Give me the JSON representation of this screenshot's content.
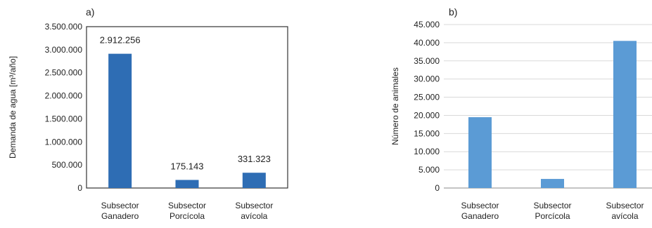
{
  "chart_data": [
    {
      "type": "bar",
      "panel_label": "a)",
      "title": "",
      "xlabel": "",
      "ylabel": "Demanda de agua [m³/año]",
      "categories": [
        [
          "Subsector",
          "Ganadero"
        ],
        [
          "Subsector",
          "Porcícola"
        ],
        [
          "Subsector",
          "avícola"
        ]
      ],
      "values": [
        2912256,
        175143,
        331323
      ],
      "data_labels": [
        "2.912.256",
        "175.143",
        "331.323"
      ],
      "ylim": [
        0,
        3500000
      ],
      "yticks": [
        0,
        500000,
        1000000,
        1500000,
        2000000,
        2500000,
        3000000,
        3500000
      ],
      "ytick_labels": [
        "0",
        "500.000",
        "1.000.000",
        "1.500.000",
        "2.000.000",
        "2.500.000",
        "3.000.000",
        "3.500.000"
      ],
      "grid": false,
      "bar_color": "#2e6db4"
    },
    {
      "type": "bar",
      "panel_label": "b)",
      "title": "",
      "xlabel": "",
      "ylabel": "Número de animales",
      "categories": [
        [
          "Subsector",
          "Ganadero"
        ],
        [
          "Subsector",
          "Porcícola"
        ],
        [
          "Subsector",
          "avícola"
        ]
      ],
      "values": [
        19500,
        2500,
        40500
      ],
      "ylim": [
        0,
        45000
      ],
      "yticks": [
        0,
        5000,
        10000,
        15000,
        20000,
        25000,
        30000,
        35000,
        40000,
        45000
      ],
      "ytick_labels": [
        "0",
        "5.000",
        "10.000",
        "15.000",
        "20.000",
        "25.000",
        "30.000",
        "35.000",
        "40.000",
        "45.000"
      ],
      "grid": true,
      "bar_color": "#5b9bd5"
    }
  ]
}
